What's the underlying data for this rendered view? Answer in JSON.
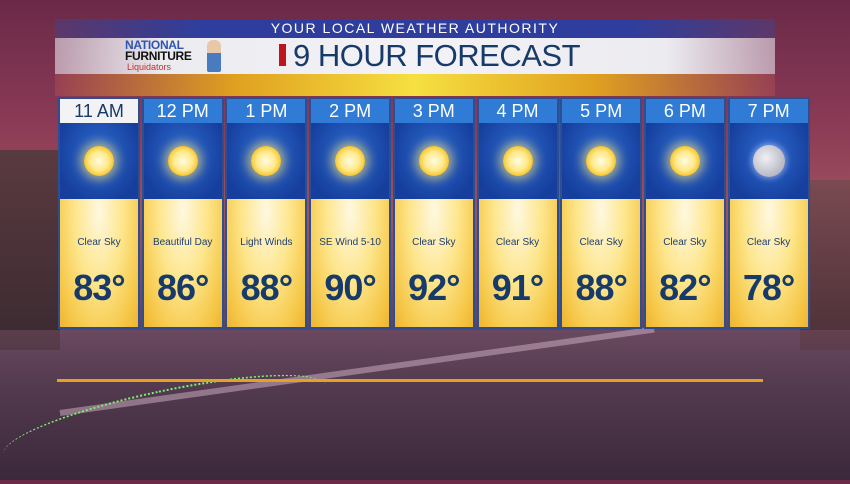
{
  "header": {
    "authority": "YOUR LOCAL WEATHER AUTHORITY",
    "title": "9 HOUR FORECAST"
  },
  "sponsor": {
    "line1": "NATIONAL",
    "line2": "FURNITURE",
    "line3": "Liquidators"
  },
  "colors": {
    "time_bar": "#2f7bd6",
    "icon_panel": "#163e9c",
    "title_text": "#163a6a",
    "accent_red": "#c0141c"
  },
  "forecast": [
    {
      "time": "11 AM",
      "icon": "sun-icon",
      "condition": "Clear Sky",
      "temp": "83°",
      "active": true
    },
    {
      "time": "12 PM",
      "icon": "sun-icon",
      "condition": "Beautiful Day",
      "temp": "86°"
    },
    {
      "time": "1 PM",
      "icon": "sun-icon",
      "condition": "Light Winds",
      "temp": "88°"
    },
    {
      "time": "2 PM",
      "icon": "sun-icon",
      "condition": "SE Wind 5-10",
      "temp": "90°"
    },
    {
      "time": "3 PM",
      "icon": "sun-icon",
      "condition": "Clear Sky",
      "temp": "92°"
    },
    {
      "time": "4 PM",
      "icon": "sun-icon",
      "condition": "Clear Sky",
      "temp": "91°"
    },
    {
      "time": "5 PM",
      "icon": "sun-icon",
      "condition": "Clear Sky",
      "temp": "88°"
    },
    {
      "time": "6 PM",
      "icon": "sun-icon",
      "condition": "Clear Sky",
      "temp": "82°"
    },
    {
      "time": "7 PM",
      "icon": "moon-icon",
      "condition": "Clear Sky",
      "temp": "78°"
    }
  ]
}
